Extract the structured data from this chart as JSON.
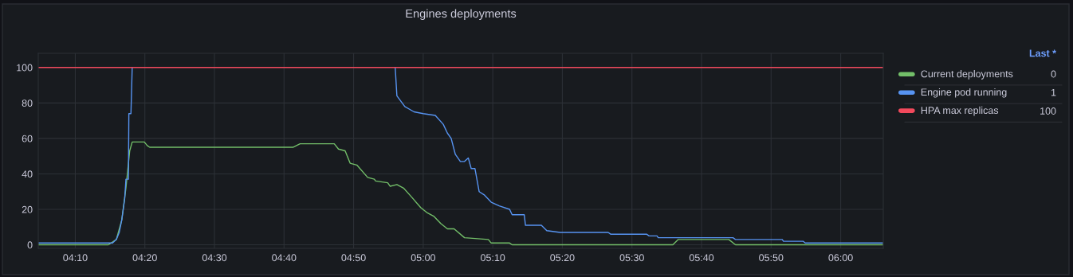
{
  "chart_data": {
    "type": "line",
    "title": "Engines deployments",
    "legend_title": "Last *",
    "annotations": [
      "0",
      "1",
      "100"
    ],
    "xlim": [
      4.078,
      6.102
    ],
    "ylim": [
      -2,
      108
    ],
    "xticks": [
      {
        "value": 4.1667,
        "label": "04:10"
      },
      {
        "value": 4.3333,
        "label": "04:20"
      },
      {
        "value": 4.5,
        "label": "04:30"
      },
      {
        "value": 4.6667,
        "label": "04:40"
      },
      {
        "value": 4.8333,
        "label": "04:50"
      },
      {
        "value": 5.0,
        "label": "05:00"
      },
      {
        "value": 5.1667,
        "label": "05:10"
      },
      {
        "value": 5.3333,
        "label": "05:20"
      },
      {
        "value": 5.5,
        "label": "05:30"
      },
      {
        "value": 5.6667,
        "label": "05:40"
      },
      {
        "value": 5.8333,
        "label": "05:50"
      },
      {
        "value": 6.0,
        "label": "06:00"
      }
    ],
    "yticks": [
      0,
      20,
      40,
      60,
      80,
      100
    ],
    "grid": true,
    "legend": "right",
    "series": [
      {
        "name": "Current deployments",
        "color": "#73bf69",
        "x": [
          4.078,
          4.246,
          4.265,
          4.278,
          4.288,
          4.297,
          4.303,
          4.332,
          4.339,
          4.345,
          4.688,
          4.705,
          4.787,
          4.797,
          4.813,
          4.825,
          4.841,
          4.867,
          4.883,
          4.886,
          4.915,
          4.921,
          4.937,
          4.953,
          4.972,
          4.994,
          5.01,
          5.026,
          5.042,
          5.058,
          5.074,
          5.099,
          5.156,
          5.163,
          5.207,
          5.213,
          5.598,
          5.611,
          5.732,
          5.748,
          6.102
        ],
        "values": [
          0,
          0,
          3,
          14,
          32,
          53,
          58,
          58,
          56,
          55,
          55,
          57,
          57,
          54,
          53,
          46,
          45,
          38,
          37,
          36,
          35,
          33,
          34,
          32,
          27,
          21,
          18,
          16,
          12,
          9,
          9,
          4,
          3,
          1,
          1,
          0,
          0,
          3,
          3,
          0,
          0
        ]
      },
      {
        "name": "Engine pod running",
        "color": "#5794f2",
        "x": [
          4.078,
          4.246,
          4.256,
          4.265,
          4.272,
          4.278,
          4.285,
          4.288,
          4.294,
          4.295,
          4.3,
          4.303,
          4.6,
          4.933,
          4.937,
          4.956,
          4.978,
          5.0,
          5.029,
          5.048,
          5.058,
          5.067,
          5.077,
          5.089,
          5.099,
          5.108,
          5.115,
          5.124,
          5.134,
          5.147,
          5.163,
          5.182,
          5.207,
          5.213,
          5.242,
          5.245,
          5.283,
          5.296,
          5.328,
          5.443,
          5.449,
          5.535,
          5.541,
          5.56,
          5.563,
          5.742,
          5.748,
          5.86,
          5.863,
          5.91,
          5.915,
          6.102
        ],
        "values": [
          1,
          1,
          1,
          3,
          7,
          14,
          26,
          37,
          37,
          74,
          74,
          100,
          null,
          100,
          84,
          78,
          75,
          74,
          73,
          68,
          63,
          60,
          51,
          47,
          47,
          49,
          43,
          43,
          30,
          28,
          24,
          22,
          20,
          17,
          17,
          11,
          11,
          8,
          7,
          7,
          6,
          6,
          5,
          5,
          4,
          4,
          3,
          3,
          2,
          2,
          1,
          1
        ]
      },
      {
        "name": "HPA max replicas",
        "color": "#f2495c",
        "x": [
          4.078,
          6.102
        ],
        "values": [
          100,
          100
        ]
      }
    ]
  }
}
